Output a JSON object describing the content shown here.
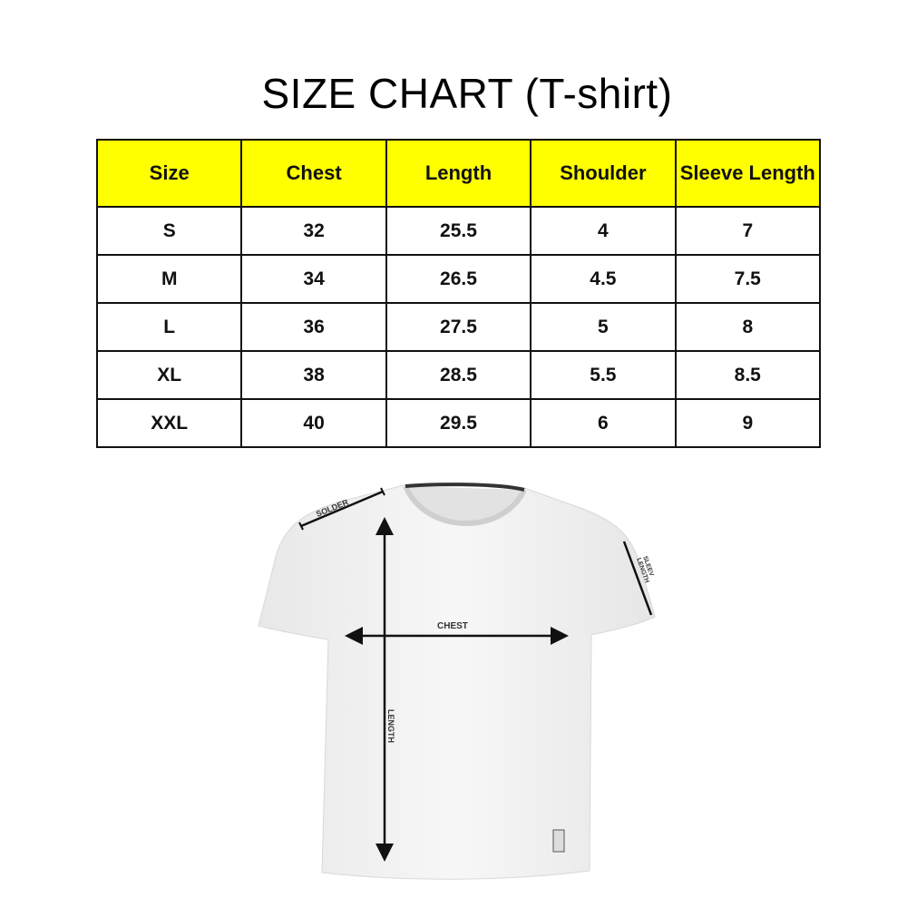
{
  "title": "SIZE CHART (T-shirt)",
  "table": {
    "headers": [
      "Size",
      "Chest",
      "Length",
      "Shoulder",
      "Sleeve Length"
    ],
    "rows": [
      [
        "S",
        "32",
        "25.5",
        "4",
        "7"
      ],
      [
        "M",
        "34",
        "26.5",
        "4.5",
        "7.5"
      ],
      [
        "L",
        "36",
        "27.5",
        "5",
        "8"
      ],
      [
        "XL",
        "38",
        "28.5",
        "5.5",
        "8.5"
      ],
      [
        "XXL",
        "40",
        "29.5",
        "6",
        "9"
      ]
    ]
  },
  "diagram": {
    "shoulder_label": "SOLDER",
    "sleeve_label_1": "SLEEV",
    "sleeve_label_2": "LENGTH",
    "chest_label": "CHEST",
    "length_label": "LENGTH"
  },
  "colors": {
    "header_bg": "#ffff00"
  }
}
